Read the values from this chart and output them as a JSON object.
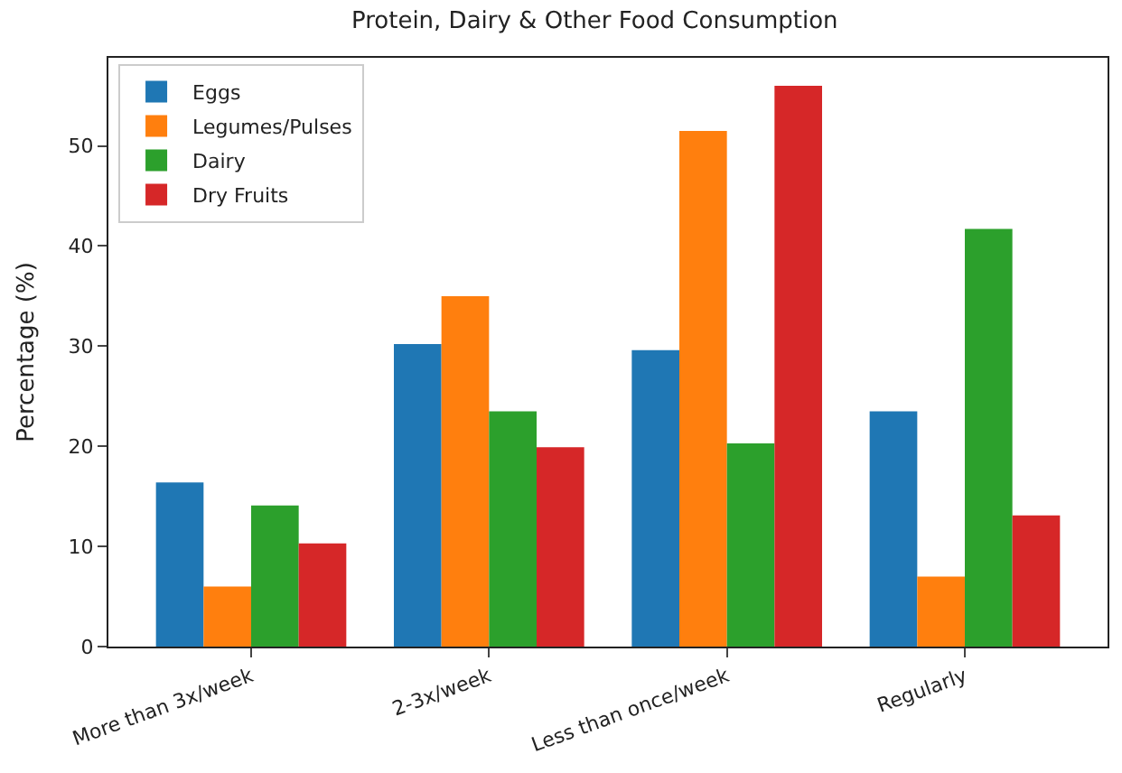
{
  "chart_data": {
    "type": "bar",
    "title": "Protein, Dairy & Other Food Consumption",
    "ylabel": "Percentage (%)",
    "categories": [
      "More than 3x/week",
      "2-3x/week",
      "Less than once/week",
      "Regularly"
    ],
    "series": [
      {
        "name": "Eggs",
        "color": "#1f77b4",
        "values": [
          16.4,
          30.2,
          29.6,
          23.5
        ]
      },
      {
        "name": "Legumes/Pulses",
        "color": "#ff7f0e",
        "values": [
          6.0,
          35.0,
          51.5,
          7.0
        ]
      },
      {
        "name": "Dairy",
        "color": "#2ca02c",
        "values": [
          14.1,
          23.5,
          20.3,
          41.7
        ]
      },
      {
        "name": "Dry Fruits",
        "color": "#d62728",
        "values": [
          10.3,
          19.9,
          56.0,
          13.1
        ]
      }
    ],
    "ylim": [
      0,
      58.8
    ],
    "yticks": [
      0,
      10,
      20,
      30,
      40,
      50
    ],
    "legend": "top left"
  }
}
